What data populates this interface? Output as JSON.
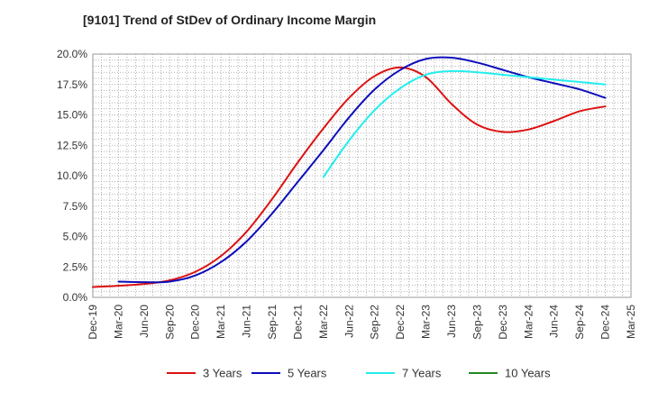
{
  "title": "[9101]  Trend of StDev of Ordinary Income Margin",
  "chart_data": {
    "type": "line",
    "title": "[9101]  Trend of StDev of Ordinary Income Margin",
    "xlabel": "",
    "ylabel": "",
    "x_ticks": [
      "Dec-19",
      "Mar-20",
      "Jun-20",
      "Sep-20",
      "Dec-20",
      "Mar-21",
      "Jun-21",
      "Sep-21",
      "Dec-21",
      "Mar-22",
      "Jun-22",
      "Sep-22",
      "Dec-22",
      "Mar-23",
      "Jun-23",
      "Sep-23",
      "Dec-23",
      "Mar-24",
      "Jun-24",
      "Sep-24",
      "Dec-24",
      "Mar-25"
    ],
    "y_ticks": [
      "0.0%",
      "2.5%",
      "5.0%",
      "7.5%",
      "10.0%",
      "12.5%",
      "15.0%",
      "17.5%",
      "20.0%"
    ],
    "ylim": [
      0,
      20
    ],
    "grid": true,
    "legend_position": "bottom",
    "series": [
      {
        "name": "3 Years",
        "color": "#dd1111",
        "x": [
          "Dec-19",
          "Mar-20",
          "Jun-20",
          "Sep-20",
          "Dec-20",
          "Mar-21",
          "Jun-21",
          "Sep-21",
          "Dec-21",
          "Mar-22",
          "Jun-22",
          "Sep-22",
          "Dec-22",
          "Mar-23",
          "Jun-23",
          "Sep-23",
          "Dec-23",
          "Mar-24",
          "Jun-24",
          "Sep-24",
          "Dec-24"
        ],
        "values": [
          0.85,
          0.95,
          1.1,
          1.4,
          2.1,
          3.4,
          5.4,
          8.1,
          11.1,
          13.9,
          16.4,
          18.2,
          18.9,
          18.1,
          15.9,
          14.2,
          13.6,
          13.8,
          14.5,
          15.3,
          15.7
        ]
      },
      {
        "name": "5 Years",
        "color": "#0d0dbb",
        "x": [
          "Mar-20",
          "Jun-20",
          "Sep-20",
          "Dec-20",
          "Mar-21",
          "Jun-21",
          "Sep-21",
          "Dec-21",
          "Mar-22",
          "Jun-22",
          "Sep-22",
          "Dec-22",
          "Mar-23",
          "Jun-23",
          "Sep-23",
          "Dec-23",
          "Mar-24",
          "Jun-24",
          "Sep-24",
          "Dec-24"
        ],
        "values": [
          1.3,
          1.25,
          1.3,
          1.8,
          2.9,
          4.6,
          6.9,
          9.5,
          12.1,
          14.8,
          17.1,
          18.7,
          19.6,
          19.7,
          19.3,
          18.7,
          18.1,
          17.6,
          17.1,
          16.4
        ]
      },
      {
        "name": "7 Years",
        "color": "#22eeee",
        "x": [
          "Mar-22",
          "Jun-22",
          "Sep-22",
          "Dec-22",
          "Mar-23",
          "Jun-23",
          "Sep-23",
          "Dec-23",
          "Mar-24",
          "Jun-24",
          "Sep-24",
          "Dec-24"
        ],
        "values": [
          9.9,
          12.9,
          15.4,
          17.2,
          18.3,
          18.6,
          18.5,
          18.3,
          18.1,
          17.9,
          17.7,
          17.5
        ]
      },
      {
        "name": "10 Years",
        "color": "#228822",
        "x": [],
        "values": []
      }
    ]
  }
}
